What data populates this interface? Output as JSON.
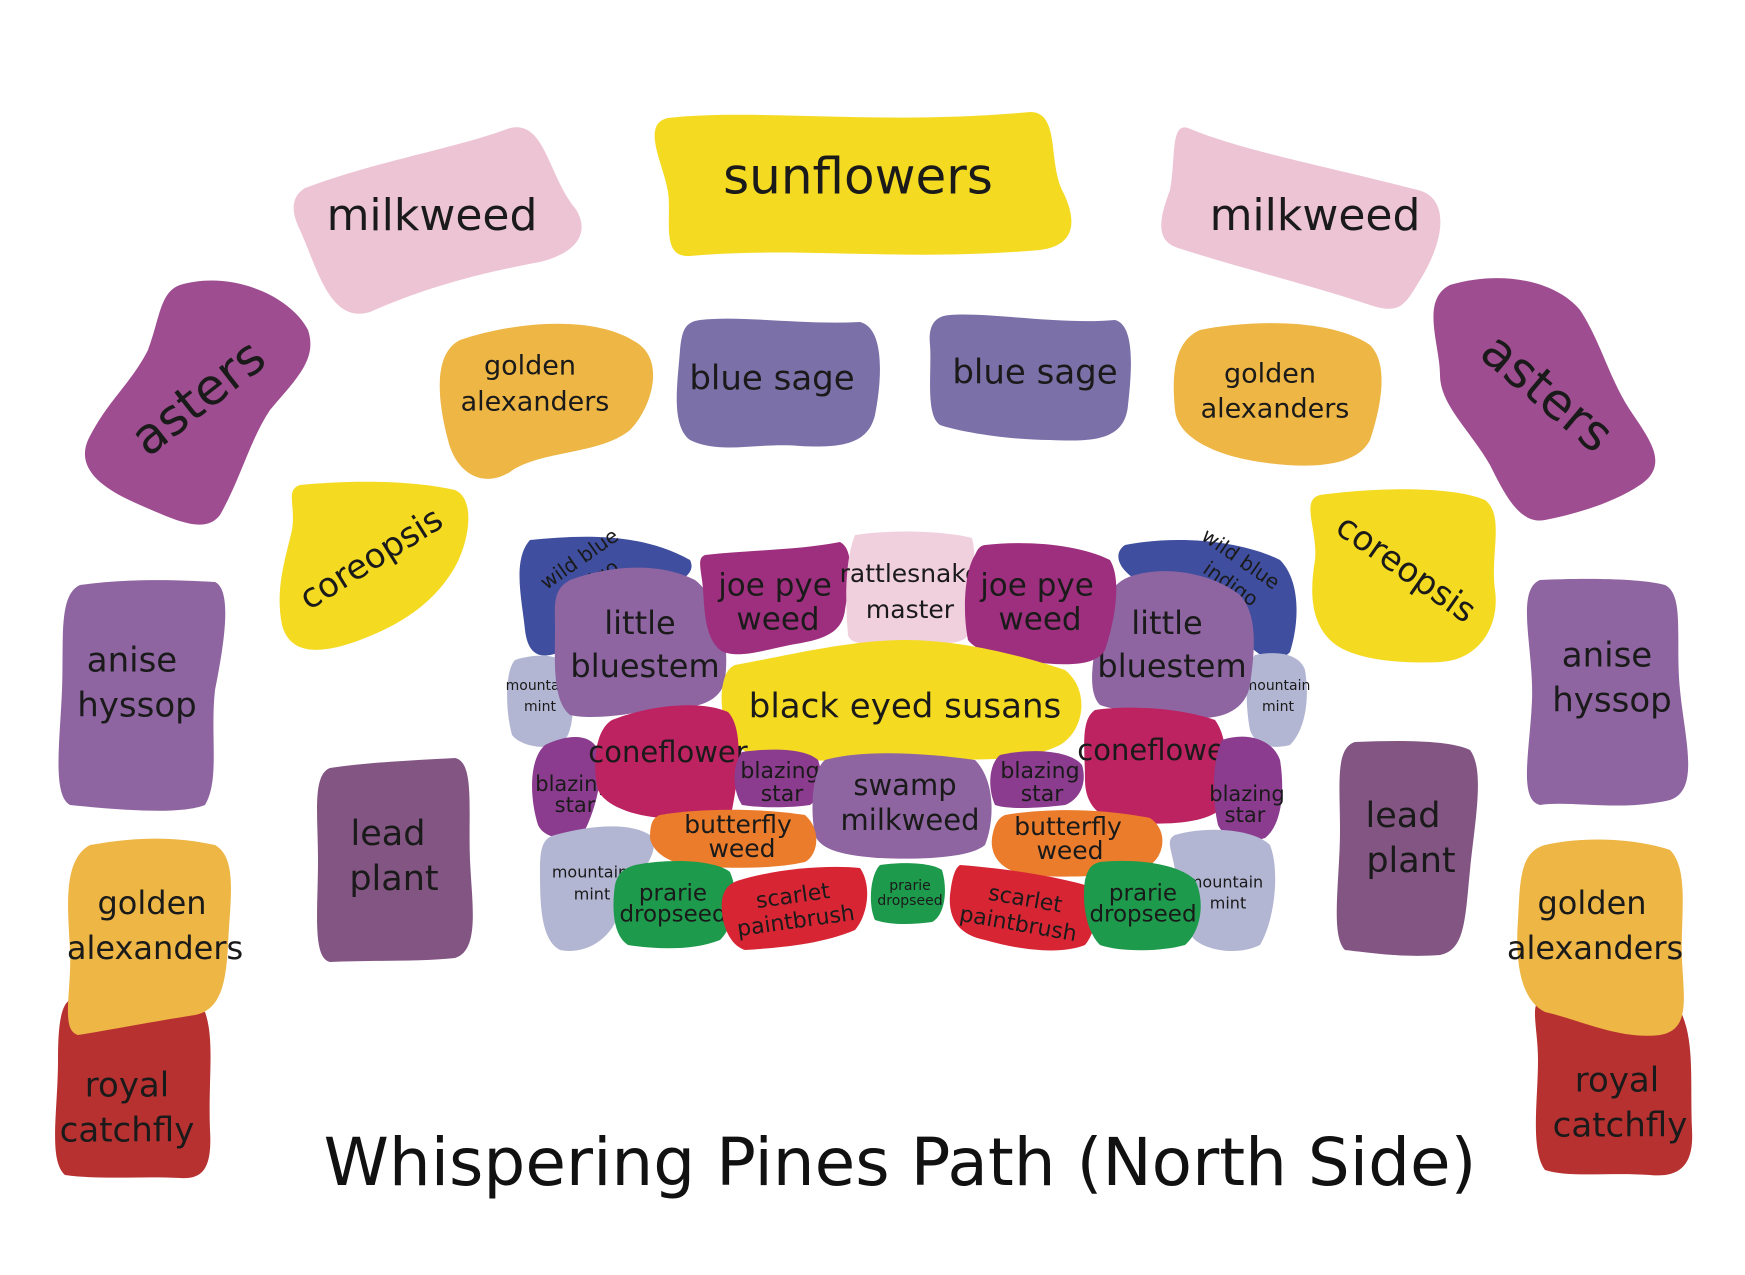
{
  "title": "Whispering Pines Path (North Side)",
  "colors": {
    "yellow": "#F5DA22",
    "pink": "#EDC4D4",
    "purple": "#9E4E90",
    "amber": "#EEB644",
    "slate": "#7B70A8",
    "violet": "#8E65A1",
    "plum": "#825583",
    "darkred": "#B73131",
    "navy": "#3F4E9E",
    "lavender": "#B3B6D3",
    "magenta": "#9E2F7E",
    "palepink": "#F1D0DE",
    "rose": "#BD2261",
    "grape": "#8B3C8E",
    "orange": "#EB7C2C",
    "green": "#1D9A4C",
    "scarlet": "#D72534"
  },
  "plants": {
    "sunflowers": "sunflowers",
    "milkweed_l": "milkweed",
    "milkweed_r": "milkweed",
    "asters_l": "asters",
    "asters_r": "asters",
    "golden_alex_top_l": [
      "golden",
      "alexanders"
    ],
    "golden_alex_top_r": [
      "golden",
      "alexanders"
    ],
    "blue_sage_l": "blue sage",
    "blue_sage_r": "blue sage",
    "coreopsis_l": "coreopsis",
    "coreopsis_r": "coreopsis",
    "anise_l": [
      "anise",
      "hyssop"
    ],
    "anise_r": [
      "anise",
      "hyssop"
    ],
    "lead_l": [
      "lead",
      "plant"
    ],
    "lead_r": [
      "lead",
      "plant"
    ],
    "golden_alex_bot_l": [
      "golden",
      "alexanders"
    ],
    "golden_alex_bot_r": [
      "golden",
      "alexanders"
    ],
    "royal_l": [
      "royal",
      "catchfly"
    ],
    "royal_r": [
      "royal",
      "catchfly"
    ],
    "wild_indigo_l": [
      "wild blue",
      "indigo"
    ],
    "wild_indigo_r": [
      "wild blue",
      "indigo"
    ],
    "little_bluestem_l": [
      "little",
      "bluestem"
    ],
    "little_bluestem_r": [
      "little",
      "bluestem"
    ],
    "joe_pye_l": [
      "joe pye",
      "weed"
    ],
    "joe_pye_r": [
      "joe pye",
      "weed"
    ],
    "rattlesnake": [
      "rattlesnake",
      "master"
    ],
    "black_eyed": "black eyed susans",
    "mountain_mint_ul": [
      "mountain",
      "mint"
    ],
    "mountain_mint_ur": [
      "mountain",
      "mint"
    ],
    "mountain_mint_ll": [
      "mountain",
      "mint"
    ],
    "mountain_mint_lr": [
      "mountain",
      "mint"
    ],
    "coneflower_l": "coneflower",
    "coneflower_r": "coneflower",
    "blazing_outer_l": [
      "blazing",
      "star"
    ],
    "blazing_inner_l": [
      "blazing",
      "star"
    ],
    "blazing_inner_r": [
      "blazing",
      "star"
    ],
    "blazing_outer_r": [
      "blazing",
      "star"
    ],
    "swamp": [
      "swamp",
      "milkweed"
    ],
    "butterfly_l": [
      "butterfly",
      "weed"
    ],
    "butterfly_r": [
      "butterfly",
      "weed"
    ],
    "prarie_l": [
      "prarie",
      "dropseed"
    ],
    "prarie_c": [
      "prarie",
      "dropseed"
    ],
    "prarie_r": [
      "prarie",
      "dropseed"
    ],
    "scarlet_l": [
      "scarlet",
      "paintbrush"
    ],
    "scarlet_r": [
      "scarlet",
      "paintbrush"
    ]
  }
}
